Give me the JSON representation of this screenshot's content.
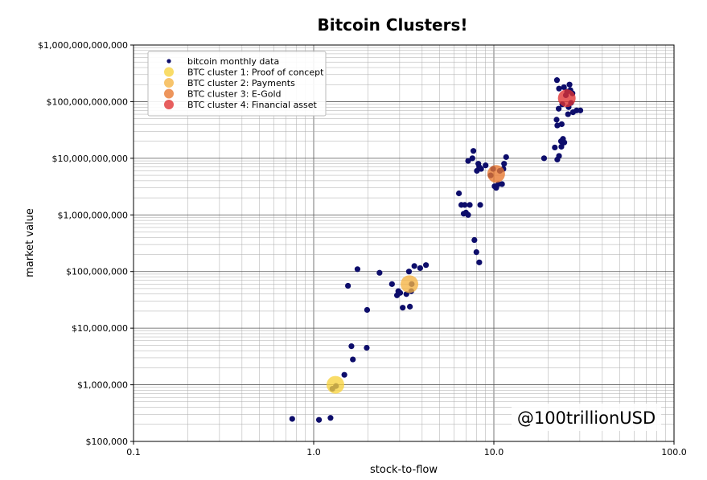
{
  "chart_data": {
    "type": "scatter",
    "title": "Bitcoin Clusters!",
    "xlabel": "stock-to-flow",
    "ylabel": "market value",
    "x_scale": "log",
    "y_scale": "log",
    "xlim": [
      0.1,
      100
    ],
    "ylim": [
      100000,
      1000000000000
    ],
    "grid": true,
    "x_ticks": [
      {
        "value": 0.1,
        "label": "0.1"
      },
      {
        "value": 1,
        "label": "1.0"
      },
      {
        "value": 10,
        "label": "10.0"
      },
      {
        "value": 100,
        "label": "100.0"
      }
    ],
    "y_ticks": [
      {
        "value": 100000,
        "label": "$100,000"
      },
      {
        "value": 1000000,
        "label": "$1,000,000"
      },
      {
        "value": 10000000,
        "label": "$10,000,000"
      },
      {
        "value": 100000000,
        "label": "$100,000,000"
      },
      {
        "value": 1000000000,
        "label": "$1,000,000,000"
      },
      {
        "value": 10000000000,
        "label": "$10,000,000,000"
      },
      {
        "value": 100000000000,
        "label": "$100,000,000,000"
      },
      {
        "value": 1000000000000,
        "label": "$1,000,000,000,000"
      }
    ],
    "legend_position": "top-left",
    "legend": [
      {
        "label": "bitcoin monthly data",
        "color": "#0d0d6b",
        "marker": "small"
      },
      {
        "label": "BTC cluster 1: Proof of concept",
        "color": "#f7d23e",
        "marker": "large"
      },
      {
        "label": "BTC cluster 2: Payments",
        "color": "#f5b342",
        "marker": "large"
      },
      {
        "label": "BTC cluster 3: E-Gold",
        "color": "#e8772e",
        "marker": "large"
      },
      {
        "label": "BTC cluster 4: Financial asset",
        "color": "#e03131",
        "marker": "large"
      }
    ],
    "watermark": "@100trillionUSD",
    "series": [
      {
        "name": "bitcoin monthly data",
        "color": "#0d0d6b",
        "points": [
          [
            0.76,
            250000
          ],
          [
            1.07,
            240000
          ],
          [
            1.24,
            260000
          ],
          [
            1.27,
            850000
          ],
          [
            1.33,
            950000
          ],
          [
            1.48,
            1500000
          ],
          [
            1.62,
            4800000
          ],
          [
            1.65,
            2800000
          ],
          [
            1.97,
            4500000
          ],
          [
            1.98,
            21000000
          ],
          [
            1.55,
            56000000
          ],
          [
            1.75,
            110000000
          ],
          [
            2.32,
            95000000
          ],
          [
            2.72,
            60000000
          ],
          [
            2.9,
            38000000
          ],
          [
            2.95,
            45000000
          ],
          [
            3.02,
            42000000
          ],
          [
            3.12,
            23000000
          ],
          [
            3.27,
            40000000
          ],
          [
            3.38,
            100000000
          ],
          [
            3.42,
            24000000
          ],
          [
            3.48,
            45000000
          ],
          [
            3.5,
            60000000
          ],
          [
            3.62,
            125000000
          ],
          [
            3.9,
            115000000
          ],
          [
            4.2,
            130000000
          ],
          [
            6.4,
            2400000000
          ],
          [
            6.6,
            1500000000
          ],
          [
            6.8,
            1050000000
          ],
          [
            6.9,
            1500000000
          ],
          [
            7.0,
            1100000000
          ],
          [
            7.2,
            1000000000
          ],
          [
            7.35,
            1500000000
          ],
          [
            7.2,
            9000000000
          ],
          [
            7.6,
            10000000000
          ],
          [
            7.7,
            13500000000
          ],
          [
            8.05,
            6000000000
          ],
          [
            8.2,
            8000000000
          ],
          [
            8.3,
            7000000000
          ],
          [
            8.5,
            6500000000
          ],
          [
            8.4,
            1500000000
          ],
          [
            7.8,
            360000000
          ],
          [
            8.0,
            220000000
          ],
          [
            8.3,
            145000000
          ],
          [
            9.0,
            7500000000
          ],
          [
            9.6,
            5000000000
          ],
          [
            9.9,
            6500000000
          ],
          [
            10.1,
            3200000000
          ],
          [
            10.3,
            3000000000
          ],
          [
            10.6,
            3500000000
          ],
          [
            11.1,
            3500000000
          ],
          [
            11.4,
            8000000000
          ],
          [
            11.7,
            10500000000
          ],
          [
            11.3,
            6500000000
          ],
          [
            10.8,
            6000000000
          ],
          [
            19.0,
            10000000000
          ],
          [
            21.8,
            15500000000
          ],
          [
            22.5,
            9500000000
          ],
          [
            23.0,
            11000000000
          ],
          [
            23.6,
            20000000000
          ],
          [
            23.7,
            16000000000
          ],
          [
            24.2,
            22000000000
          ],
          [
            24.6,
            19000000000
          ],
          [
            22.3,
            48000000000
          ],
          [
            22.5,
            38000000000
          ],
          [
            23.8,
            40000000000
          ],
          [
            22.4,
            240000000000
          ],
          [
            23.0,
            170000000000
          ],
          [
            22.9,
            75000000000
          ],
          [
            24.5,
            180000000000
          ],
          [
            25.1,
            130000000000
          ],
          [
            25.5,
            150000000000
          ],
          [
            26.3,
            200000000000
          ],
          [
            26.6,
            160000000000
          ],
          [
            27.3,
            140000000000
          ],
          [
            26.8,
            95000000000
          ],
          [
            25.8,
            60000000000
          ],
          [
            27.5,
            65000000000
          ],
          [
            28.8,
            70000000000
          ],
          [
            30.2,
            70000000000
          ],
          [
            24.0,
            90000000000
          ],
          [
            26.0,
            80000000000
          ]
        ]
      },
      {
        "name": "BTC cluster 1: Proof of concept",
        "color": "#f7d23e",
        "points": [
          [
            1.32,
            1000000
          ]
        ]
      },
      {
        "name": "BTC cluster 2: Payments",
        "color": "#f5b342",
        "points": [
          [
            3.4,
            60000000
          ]
        ]
      },
      {
        "name": "BTC cluster 3: E-Gold",
        "color": "#e8772e",
        "points": [
          [
            10.3,
            5300000000
          ]
        ]
      },
      {
        "name": "BTC cluster 4: Financial asset",
        "color": "#e03131",
        "points": [
          [
            25.4,
            115000000000
          ]
        ]
      }
    ]
  }
}
